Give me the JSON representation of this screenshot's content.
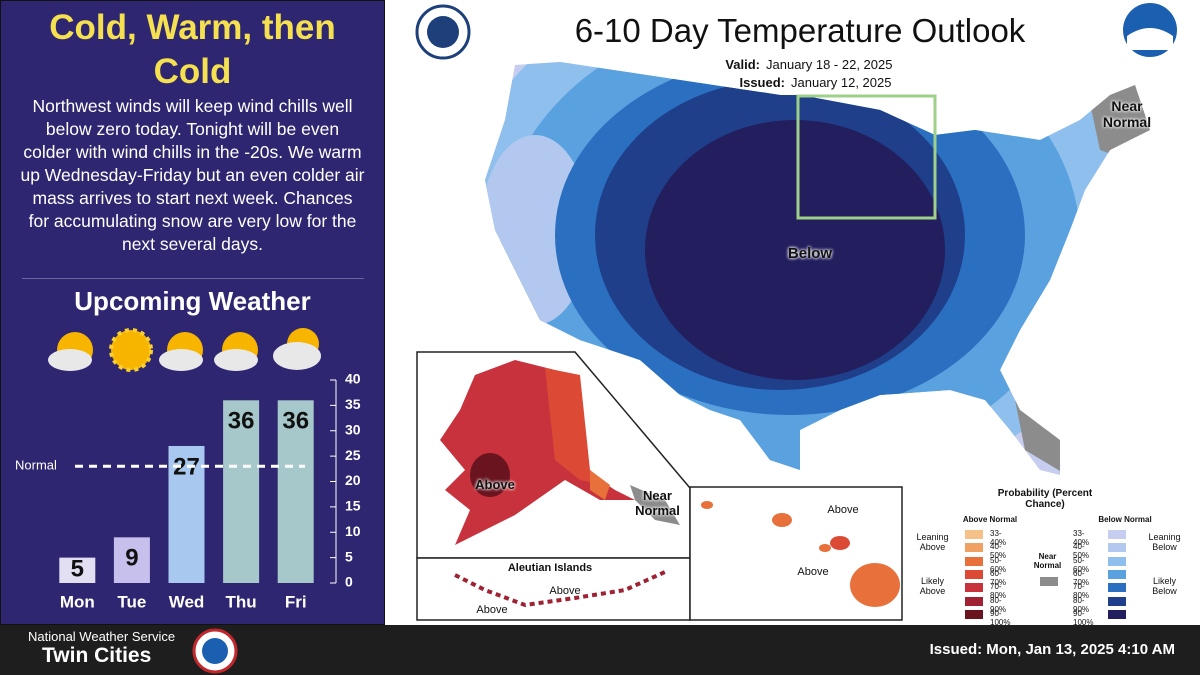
{
  "left_panel": {
    "title": "Cold, Warm, then Cold",
    "text": "Northwest winds will keep wind chills well below zero today. Tonight will be even colder with wind chills in the -20s. We warm up Wednesday-Friday but an even colder air mass arrives to start next week. Chances for accumulating snow are very low for the next several days.",
    "subtitle": "Upcoming Weather"
  },
  "chart_data": {
    "type": "bar",
    "categories": [
      "Mon",
      "Tue",
      "Wed",
      "Thu",
      "Fri"
    ],
    "values": [
      5,
      9,
      27,
      36,
      36
    ],
    "colors": [
      "#e2dff2",
      "#c8c0ec",
      "#a8c8f0",
      "#a7c8cb",
      "#a7c8cb"
    ],
    "ylim": [
      0,
      40
    ],
    "yticks": [
      0,
      5,
      10,
      15,
      20,
      25,
      30,
      35,
      40
    ],
    "normal_line": {
      "value": 23,
      "label": "Normal"
    }
  },
  "map": {
    "title": "6-10 Day Temperature Outlook",
    "valid_label": "Valid:",
    "valid": "January 18 - 22, 2025",
    "issued_label": "Issued:",
    "issued": "January 12, 2025",
    "labels": {
      "near_normal_ne": "Near Normal",
      "below": "Below",
      "alaska_above": "Above",
      "alaska_near_normal": "Near Normal",
      "aleutian_title": "Aleutian Islands",
      "aleutian_above_1": "Above",
      "aleutian_above_2": "Above",
      "hawaii_above_1": "Above",
      "hawaii_above_2": "Above"
    },
    "legend": {
      "title": "Probability (Percent Chance)",
      "above_title": "Above Normal",
      "below_title": "Below Normal",
      "leaning_above": "Leaning Above",
      "likely_above": "Likely Above",
      "near_normal": "Near Normal",
      "leaning_below": "Leaning Below",
      "likely_below": "Likely Below",
      "above": [
        {
          "label": "33-40%",
          "color": "#f5c189"
        },
        {
          "label": "40-50%",
          "color": "#f0a060"
        },
        {
          "label": "50-60%",
          "color": "#e8703a"
        },
        {
          "label": "60-70%",
          "color": "#dc4a36"
        },
        {
          "label": "70-80%",
          "color": "#c8323c"
        },
        {
          "label": "80-90%",
          "color": "#9e2232"
        },
        {
          "label": "90-100%",
          "color": "#6a1420"
        }
      ],
      "below": [
        {
          "label": "33-40%",
          "color": "#c6cdee"
        },
        {
          "label": "40-50%",
          "color": "#b3c8ef"
        },
        {
          "label": "50-60%",
          "color": "#8ebfed"
        },
        {
          "label": "60-70%",
          "color": "#5aa2df"
        },
        {
          "label": "70-80%",
          "color": "#2a6fc0"
        },
        {
          "label": "80-90%",
          "color": "#1f3f8a"
        },
        {
          "label": "90-100%",
          "color": "#231e5e"
        }
      ],
      "near_normal_color": "#8c8c8c"
    }
  },
  "footer": {
    "org": "National Weather Service",
    "office": "Twin Cities",
    "issued": "Issued: Mon, Jan 13, 2025 4:10 AM"
  }
}
